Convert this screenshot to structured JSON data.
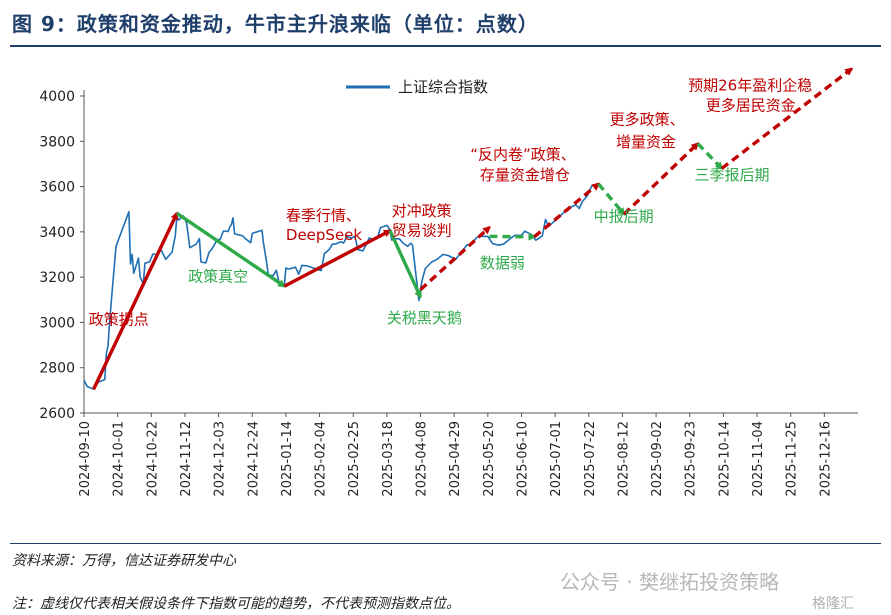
{
  "header": {
    "title": "图 9：政策和资金推动，牛市主升浪来临（单位：点数）"
  },
  "footer": {
    "source": "资料来源：万得，信达证券研发中心",
    "note": "注：虚线仅代表相关假设条件下指数可能的趋势，不代表预测指数点位。"
  },
  "watermark": {
    "text": "公众号 · 樊继拓投资策略",
    "brand": "格隆汇"
  },
  "colors": {
    "index_line": "#1f6fb5",
    "red": "#c00000",
    "green": "#2eaa4a",
    "title": "#1f3f6b"
  },
  "chart_data": {
    "type": "line",
    "title": "图 9：政策和资金推动，牛市主升浪来临（单位：点数）",
    "ylim": [
      2600,
      4000
    ],
    "yticks": [
      2600,
      2800,
      3000,
      3200,
      3400,
      3600,
      3800,
      4000
    ],
    "xlim": [
      "2024-09-10",
      "2026-01-06"
    ],
    "xticks": [
      "2024-09-10",
      "2024-10-01",
      "2024-10-22",
      "2024-11-12",
      "2024-12-03",
      "2024-12-24",
      "2025-01-14",
      "2025-02-04",
      "2025-02-25",
      "2025-03-18",
      "2025-04-08",
      "2025-04-29",
      "2025-05-20",
      "2025-06-10",
      "2025-07-01",
      "2025-07-22",
      "2025-08-12",
      "2025-09-02",
      "2025-09-23",
      "2025-10-14",
      "2025-11-04",
      "2025-11-25",
      "2025-12-16"
    ],
    "legend": {
      "label": "上证综合指数",
      "position": "top-center"
    },
    "grid": false,
    "series": [
      {
        "name": "上证综合指数",
        "color": "#1f6fb5",
        "points": [
          [
            "2024-09-10",
            2745
          ],
          [
            "2024-09-12",
            2717
          ],
          [
            "2024-09-16",
            2705
          ],
          [
            "2024-09-19",
            2736
          ],
          [
            "2024-09-23",
            2748
          ],
          [
            "2024-09-24",
            2863
          ],
          [
            "2024-09-25",
            2896
          ],
          [
            "2024-09-26",
            3000
          ],
          [
            "2024-09-27",
            3087
          ],
          [
            "2024-09-30",
            3336
          ],
          [
            "2024-10-08",
            3489
          ],
          [
            "2024-10-09",
            3258
          ],
          [
            "2024-10-10",
            3301
          ],
          [
            "2024-10-11",
            3217
          ],
          [
            "2024-10-14",
            3284
          ],
          [
            "2024-10-15",
            3202
          ],
          [
            "2024-10-17",
            3169
          ],
          [
            "2024-10-18",
            3261
          ],
          [
            "2024-10-21",
            3268
          ],
          [
            "2024-10-23",
            3302
          ],
          [
            "2024-10-25",
            3299
          ],
          [
            "2024-10-28",
            3322
          ],
          [
            "2024-10-31",
            3279
          ],
          [
            "2024-11-04",
            3310
          ],
          [
            "2024-11-06",
            3383
          ],
          [
            "2024-11-07",
            3470
          ],
          [
            "2024-11-08",
            3452
          ],
          [
            "2024-11-11",
            3470
          ],
          [
            "2024-11-13",
            3439
          ],
          [
            "2024-11-15",
            3330
          ],
          [
            "2024-11-19",
            3346
          ],
          [
            "2024-11-21",
            3370
          ],
          [
            "2024-11-22",
            3267
          ],
          [
            "2024-11-25",
            3263
          ],
          [
            "2024-11-27",
            3309
          ],
          [
            "2024-11-29",
            3326
          ],
          [
            "2024-12-02",
            3364
          ],
          [
            "2024-12-04",
            3367
          ],
          [
            "2024-12-06",
            3404
          ],
          [
            "2024-12-09",
            3402
          ],
          [
            "2024-12-10",
            3422
          ],
          [
            "2024-12-11",
            3432
          ],
          [
            "2024-12-12",
            3461
          ],
          [
            "2024-12-13",
            3391
          ],
          [
            "2024-12-16",
            3386
          ],
          [
            "2024-12-18",
            3382
          ],
          [
            "2024-12-20",
            3368
          ],
          [
            "2024-12-23",
            3352
          ],
          [
            "2024-12-24",
            3393
          ],
          [
            "2024-12-26",
            3398
          ],
          [
            "2024-12-27",
            3400
          ],
          [
            "2024-12-30",
            3407
          ],
          [
            "2024-12-31",
            3351
          ],
          [
            "2025-01-02",
            3262
          ],
          [
            "2025-01-03",
            3211
          ],
          [
            "2025-01-06",
            3206
          ],
          [
            "2025-01-08",
            3230
          ],
          [
            "2025-01-10",
            3168
          ],
          [
            "2025-01-13",
            3160
          ],
          [
            "2025-01-14",
            3240
          ],
          [
            "2025-01-16",
            3236
          ],
          [
            "2025-01-20",
            3244
          ],
          [
            "2025-01-22",
            3213
          ],
          [
            "2025-01-24",
            3252
          ],
          [
            "2025-01-27",
            3250
          ],
          [
            "2025-02-05",
            3229
          ],
          [
            "2025-02-07",
            3304
          ],
          [
            "2025-02-10",
            3322
          ],
          [
            "2025-02-12",
            3346
          ],
          [
            "2025-02-14",
            3346
          ],
          [
            "2025-02-17",
            3356
          ],
          [
            "2025-02-19",
            3351
          ],
          [
            "2025-02-21",
            3379
          ],
          [
            "2025-02-24",
            3373
          ],
          [
            "2025-02-26",
            3380
          ],
          [
            "2025-02-28",
            3321
          ],
          [
            "2025-03-03",
            3316
          ],
          [
            "2025-03-05",
            3342
          ],
          [
            "2025-03-07",
            3373
          ],
          [
            "2025-03-10",
            3366
          ],
          [
            "2025-03-12",
            3371
          ],
          [
            "2025-03-14",
            3419
          ],
          [
            "2025-03-17",
            3426
          ],
          [
            "2025-03-18",
            3429
          ],
          [
            "2025-03-20",
            3408
          ],
          [
            "2025-03-21",
            3364
          ],
          [
            "2025-03-24",
            3370
          ],
          [
            "2025-03-26",
            3368
          ],
          [
            "2025-03-28",
            3351
          ],
          [
            "2025-03-31",
            3336
          ],
          [
            "2025-04-02",
            3350
          ],
          [
            "2025-04-03",
            3342
          ],
          [
            "2025-04-07",
            3097
          ],
          [
            "2025-04-08",
            3145
          ],
          [
            "2025-04-09",
            3186
          ],
          [
            "2025-04-11",
            3238
          ],
          [
            "2025-04-15",
            3267
          ],
          [
            "2025-04-18",
            3277
          ],
          [
            "2025-04-22",
            3300
          ],
          [
            "2025-04-25",
            3296
          ],
          [
            "2025-04-30",
            3279
          ],
          [
            "2025-05-07",
            3343
          ],
          [
            "2025-05-09",
            3342
          ],
          [
            "2025-05-13",
            3374
          ],
          [
            "2025-05-15",
            3381
          ],
          [
            "2025-05-20",
            3380
          ],
          [
            "2025-05-23",
            3348
          ],
          [
            "2025-05-27",
            3341
          ],
          [
            "2025-05-30",
            3347
          ],
          [
            "2025-06-04",
            3376
          ],
          [
            "2025-06-06",
            3385
          ],
          [
            "2025-06-10",
            3385
          ],
          [
            "2025-06-12",
            3403
          ],
          [
            "2025-06-16",
            3389
          ],
          [
            "2025-06-19",
            3363
          ],
          [
            "2025-06-23",
            3382
          ],
          [
            "2025-06-25",
            3455
          ],
          [
            "2025-06-27",
            3424
          ],
          [
            "2025-06-30",
            3444
          ],
          [
            "2025-07-03",
            3462
          ],
          [
            "2025-07-08",
            3497
          ],
          [
            "2025-07-11",
            3510
          ],
          [
            "2025-07-14",
            3519
          ],
          [
            "2025-07-16",
            3503
          ],
          [
            "2025-07-18",
            3534
          ],
          [
            "2025-07-21",
            3559
          ],
          [
            "2025-07-24",
            3605
          ]
        ]
      }
    ],
    "projections": [
      {
        "label": "政策拐点",
        "color": "#c00000",
        "style": "solid",
        "from": [
          "2024-09-16",
          2705
        ],
        "to": [
          "2024-11-07",
          3482
        ]
      },
      {
        "label": "政策真空",
        "color": "#2eaa4a",
        "style": "solid",
        "from": [
          "2024-11-07",
          3482
        ],
        "to": [
          "2025-01-13",
          3160
        ]
      },
      {
        "label": "春季行情、DeepSeek",
        "color": "#c00000",
        "style": "solid",
        "from": [
          "2025-01-13",
          3160
        ],
        "to": [
          "2025-03-20",
          3405
        ]
      },
      {
        "label": "关税黑天鹅",
        "color": "#2eaa4a",
        "style": "solid",
        "from": [
          "2025-03-20",
          3405
        ],
        "to": [
          "2025-04-08",
          3112
        ]
      },
      {
        "label": "对冲政策、贸易谈判",
        "color": "#c00000",
        "style": "dashed",
        "from": [
          "2025-04-08",
          3145
        ],
        "to": [
          "2025-05-21",
          3420
        ]
      },
      {
        "label": "数据弱",
        "color": "#2eaa4a",
        "style": "dashed",
        "from": [
          "2025-05-21",
          3380
        ],
        "to": [
          "2025-06-18",
          3378
        ]
      },
      {
        "label": "“反内卷”政策、存量资金增仓",
        "color": "#c00000",
        "style": "dashed",
        "from": [
          "2025-06-18",
          3378
        ],
        "to": [
          "2025-07-28",
          3612
        ]
      },
      {
        "label": "中报后期",
        "color": "#2eaa4a",
        "style": "dashed",
        "from": [
          "2025-07-28",
          3612
        ],
        "to": [
          "2025-08-13",
          3478
        ]
      },
      {
        "label": "更多政策、增量资金",
        "color": "#c00000",
        "style": "dashed",
        "from": [
          "2025-08-13",
          3478
        ],
        "to": [
          "2025-09-28",
          3790
        ]
      },
      {
        "label": "三季报后期",
        "color": "#2eaa4a",
        "style": "dashed",
        "from": [
          "2025-09-28",
          3790
        ],
        "to": [
          "2025-10-13",
          3680
        ]
      },
      {
        "label": "预期26年盈利企稳、更多居民资金",
        "color": "#c00000",
        "style": "dashed",
        "from": [
          "2025-10-13",
          3680
        ],
        "to": [
          "2026-01-02",
          4120
        ]
      }
    ],
    "annotations": [
      {
        "text": "政策拐点",
        "color": "#c00000",
        "anchor": [
          "2024-09-13",
          2990
        ]
      },
      {
        "text": "政策真空",
        "color": "#2eaa4a",
        "anchor": [
          "2024-11-14",
          3180
        ]
      },
      {
        "text": "春季行情、",
        "color": "#c00000",
        "anchor": [
          "2025-01-14",
          3450
        ]
      },
      {
        "text": "DeepSeek",
        "color": "#c00000",
        "anchor": [
          "2025-01-14",
          3365
        ]
      },
      {
        "text": "关税黑天鹅",
        "color": "#2eaa4a",
        "anchor": [
          "2025-03-18",
          2998
        ]
      },
      {
        "text": "对冲政策",
        "color": "#c00000",
        "anchor": [
          "2025-03-21",
          3470
        ]
      },
      {
        "text": "贸易谈判",
        "color": "#c00000",
        "anchor": [
          "2025-03-21",
          3385
        ]
      },
      {
        "text": "数据弱",
        "color": "#2eaa4a",
        "anchor": [
          "2025-05-15",
          3240
        ]
      },
      {
        "text": "“反内卷”政策、",
        "color": "#c00000",
        "anchor": [
          "2025-05-09",
          3720
        ]
      },
      {
        "text": "存量资金增仓",
        "color": "#c00000",
        "anchor": [
          "2025-05-15",
          3630
        ]
      },
      {
        "text": "中报后期",
        "color": "#2eaa4a",
        "anchor": [
          "2025-07-25",
          3445
        ]
      },
      {
        "text": "更多政策、",
        "color": "#c00000",
        "anchor": [
          "2025-08-04",
          3875
        ]
      },
      {
        "text": "增量资金",
        "color": "#c00000",
        "anchor": [
          "2025-08-08",
          3775
        ]
      },
      {
        "text": "三季报后期",
        "color": "#2eaa4a",
        "anchor": [
          "2025-09-26",
          3630
        ]
      },
      {
        "text": "预期26年盈利企稳",
        "color": "#c00000",
        "anchor": [
          "2025-09-22",
          4025
        ]
      },
      {
        "text": "更多居民资金",
        "color": "#c00000",
        "anchor": [
          "2025-10-03",
          3935
        ]
      }
    ]
  }
}
